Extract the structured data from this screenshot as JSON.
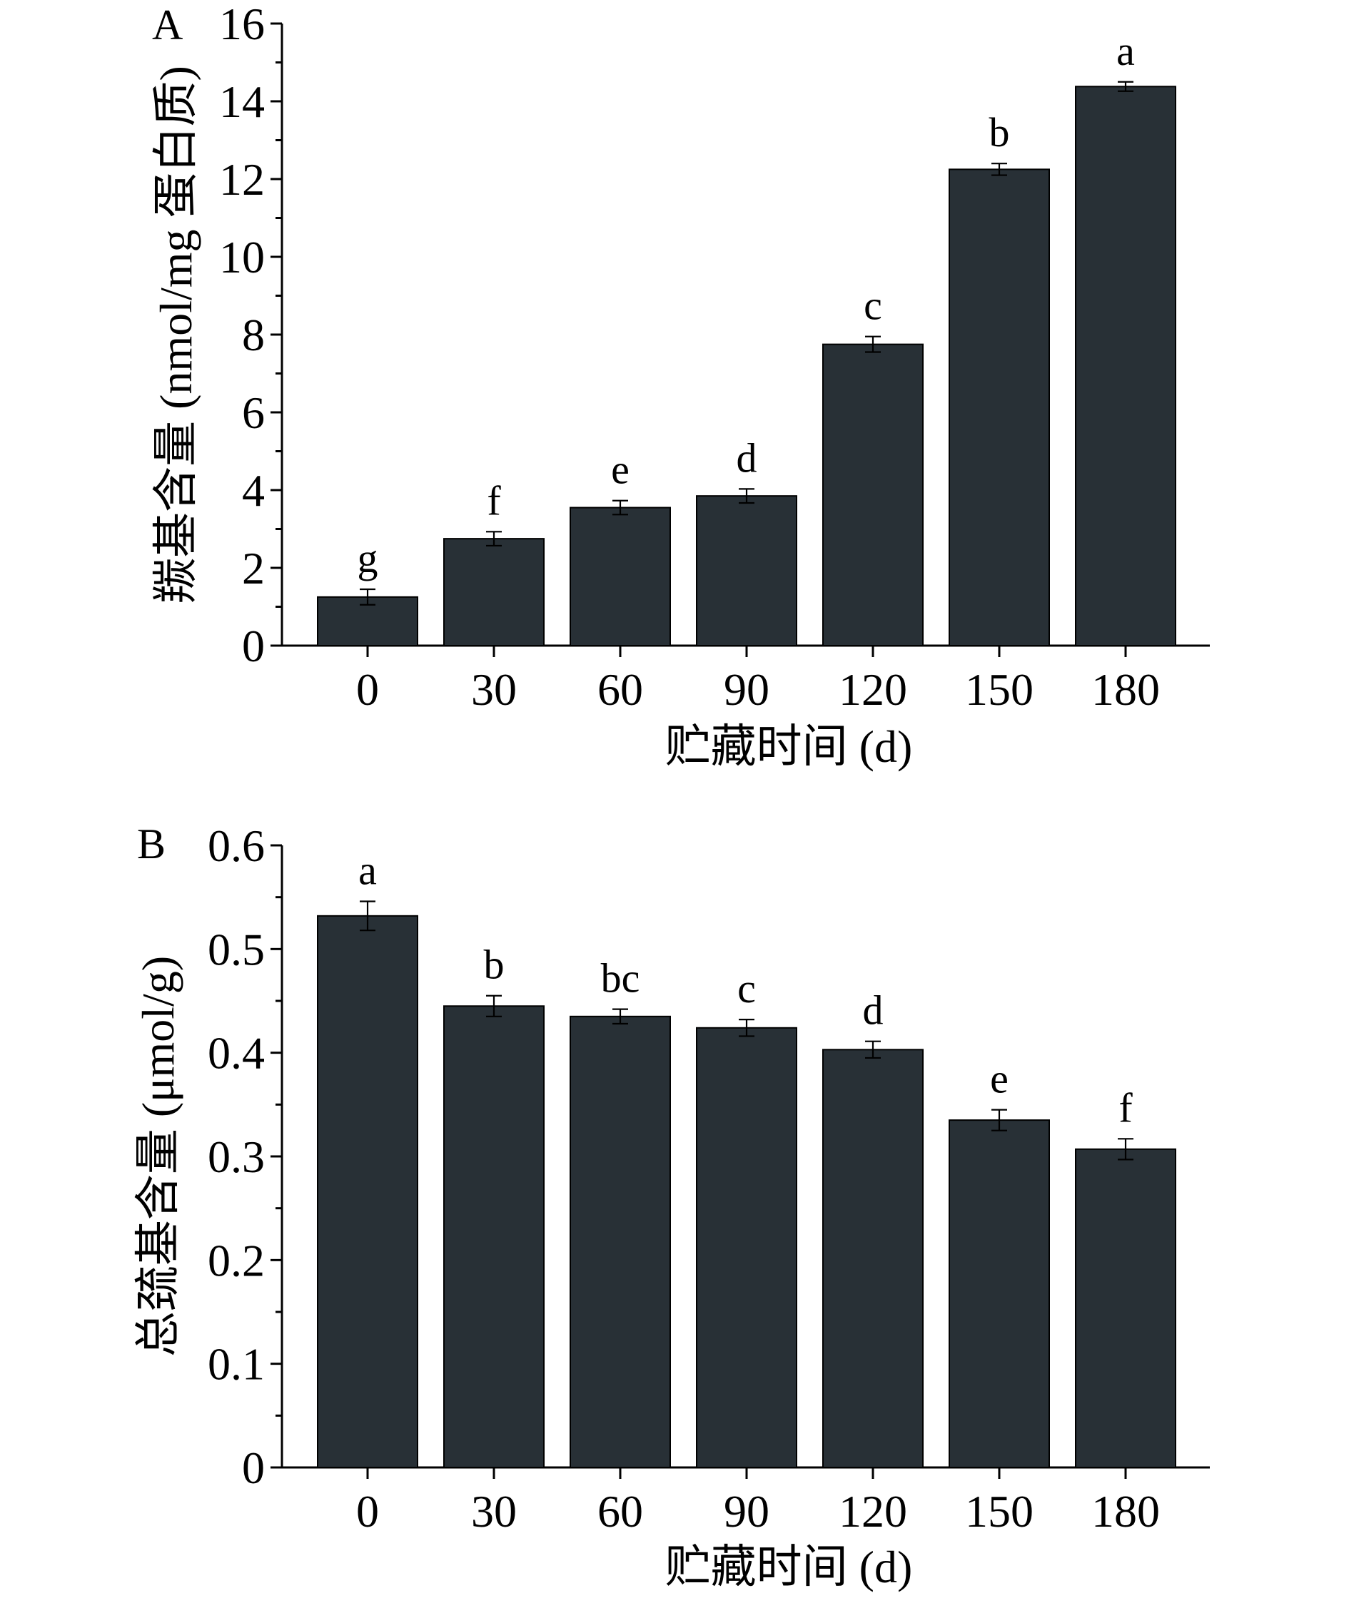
{
  "chart_data": [
    {
      "type": "bar",
      "panel_label": "A",
      "categories": [
        "0",
        "30",
        "60",
        "90",
        "120",
        "150",
        "180"
      ],
      "values": [
        1.25,
        2.75,
        3.55,
        3.85,
        7.75,
        12.25,
        14.38
      ],
      "errors": [
        0.2,
        0.18,
        0.18,
        0.18,
        0.2,
        0.15,
        0.12
      ],
      "significance": [
        "g",
        "f",
        "e",
        "d",
        "c",
        "b",
        "a"
      ],
      "xlabel": "贮藏时间 (d)",
      "ylabel": "羰基含量 (nmol/mg 蛋白质)",
      "ylim": [
        0,
        16
      ],
      "yticks": [
        0,
        2,
        4,
        6,
        8,
        10,
        12,
        14,
        16
      ],
      "ytick_labels": [
        "0",
        "2",
        "4",
        "6",
        "8",
        "10",
        "12",
        "14",
        "16"
      ],
      "bar_color": "#283036",
      "grid": false
    },
    {
      "type": "bar",
      "panel_label": "B",
      "categories": [
        "0",
        "30",
        "60",
        "90",
        "120",
        "150",
        "180"
      ],
      "values": [
        0.532,
        0.445,
        0.435,
        0.424,
        0.403,
        0.335,
        0.307
      ],
      "errors": [
        0.014,
        0.01,
        0.007,
        0.008,
        0.008,
        0.01,
        0.01
      ],
      "significance": [
        "a",
        "b",
        "bc",
        "c",
        "d",
        "e",
        "f"
      ],
      "xlabel": "贮藏时间 (d)",
      "ylabel": "总巯基含量 (μmol/g)",
      "ylim": [
        0,
        0.6
      ],
      "yticks": [
        0,
        0.1,
        0.2,
        0.3,
        0.4,
        0.5,
        0.6
      ],
      "ytick_labels": [
        "0",
        "0.1",
        "0.2",
        "0.3",
        "0.4",
        "0.5",
        "0.6"
      ],
      "bar_color": "#283036",
      "grid": false
    }
  ]
}
